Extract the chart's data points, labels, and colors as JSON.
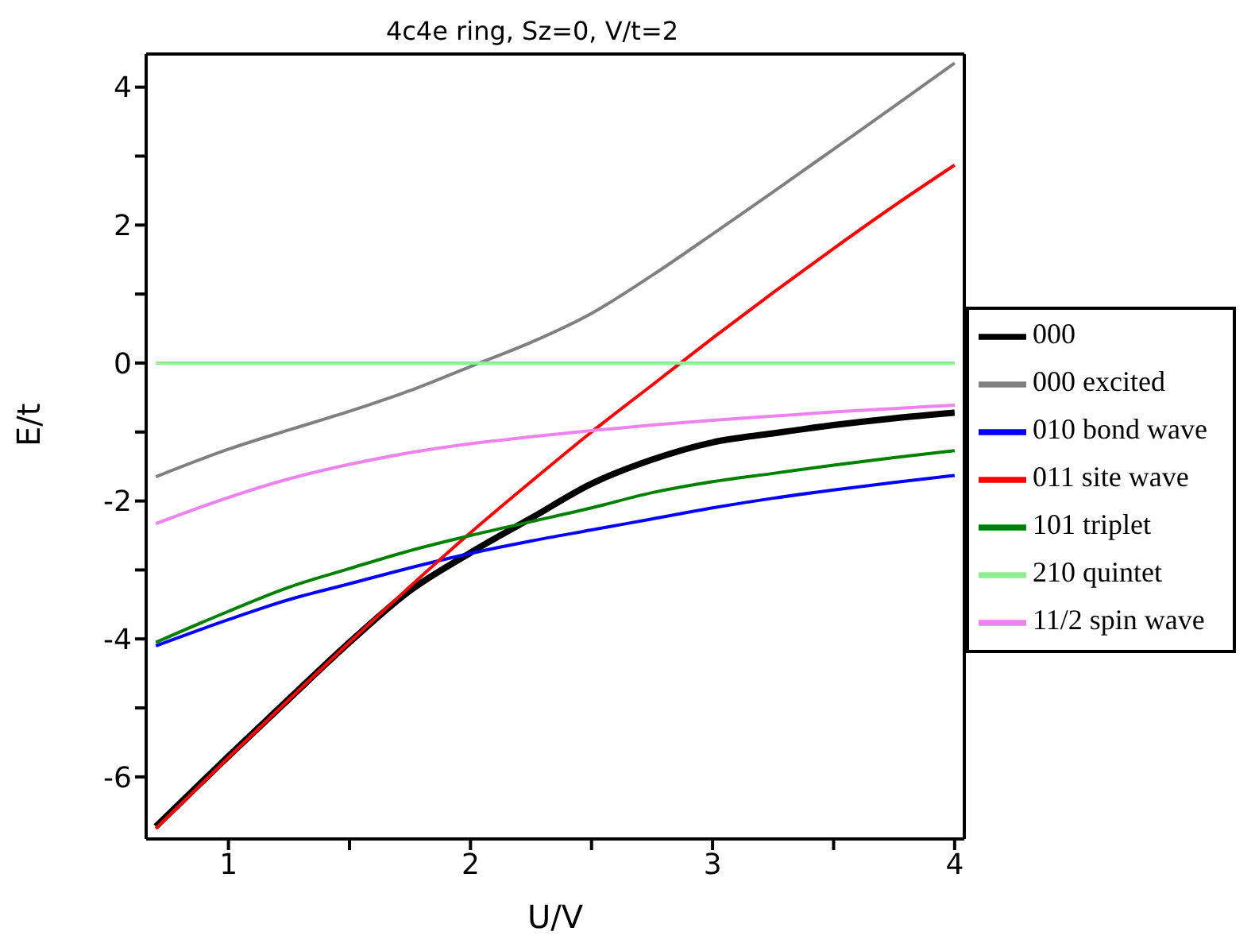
{
  "chart_data": {
    "type": "line",
    "title": "4c4e ring, Sz=0, V/t=2",
    "xlabel": "U/V",
    "ylabel": "E/t",
    "x": [
      0.7,
      1,
      1.25,
      1.5,
      1.75,
      2,
      2.25,
      2.5,
      2.75,
      3,
      3.25,
      3.5,
      3.75,
      4
    ],
    "series": [
      {
        "name": "000",
        "color": "#000000",
        "values": [
          -6.72,
          -5.7,
          -4.87,
          -4.05,
          -3.3,
          -2.75,
          -2.25,
          -1.75,
          -1.4,
          -1.15,
          -1.02,
          -0.9,
          -0.8,
          -0.72
        ]
      },
      {
        "name": "000 excited",
        "color": "#808080",
        "values": [
          -1.65,
          -1.25,
          -0.97,
          -0.7,
          -0.4,
          -0.05,
          0.3,
          0.72,
          1.27,
          1.87,
          2.48,
          3.1,
          3.72,
          4.35
        ]
      },
      {
        "name": "010 bond wave",
        "color": "#0000ff",
        "values": [
          -4.1,
          -3.72,
          -3.43,
          -3.2,
          -2.97,
          -2.76,
          -2.58,
          -2.42,
          -2.26,
          -2.1,
          -1.96,
          -1.84,
          -1.73,
          -1.63
        ]
      },
      {
        "name": "011 site wave",
        "color": "#ff0000",
        "values": [
          -6.75,
          -5.72,
          -4.88,
          -4.05,
          -3.24,
          -2.46,
          -1.72,
          -1.0,
          -0.32,
          0.36,
          1.02,
          1.66,
          2.28,
          2.87
        ]
      },
      {
        "name": "101 triplet",
        "color": "#008000",
        "values": [
          -4.05,
          -3.6,
          -3.25,
          -2.98,
          -2.72,
          -2.5,
          -2.3,
          -2.1,
          -1.88,
          -1.72,
          -1.6,
          -1.48,
          -1.37,
          -1.27
        ]
      },
      {
        "name": "210 quintet",
        "color": "#90ee90",
        "values": [
          0,
          0,
          0,
          0,
          0,
          0,
          0,
          0,
          0,
          0,
          0,
          0,
          0,
          0
        ]
      },
      {
        "name": "11/2 spin wave",
        "color": "#ee82ee",
        "values": [
          -2.33,
          -1.95,
          -1.68,
          -1.47,
          -1.3,
          -1.17,
          -1.07,
          -0.98,
          -0.9,
          -0.83,
          -0.77,
          -0.71,
          -0.66,
          -0.61
        ]
      }
    ],
    "xlim": [
      0.66,
      4.04
    ],
    "ylim": [
      -6.9,
      4.48
    ],
    "xticks": [
      1,
      {
        "value": 1.5,
        "label": null
      },
      2,
      {
        "value": 2.5,
        "label": null
      },
      3,
      {
        "value": 3.5,
        "label": null
      },
      4
    ],
    "yticks": [
      -6,
      {
        "value": -5,
        "label": null
      },
      -4,
      {
        "value": -3,
        "label": null
      },
      -2,
      {
        "value": -1,
        "label": null
      },
      0,
      {
        "value": 1,
        "label": null
      },
      2,
      {
        "value": 3,
        "label": null
      },
      4
    ],
    "grid": false,
    "legend": "right",
    "marker": "none",
    "line_style": "solid"
  }
}
